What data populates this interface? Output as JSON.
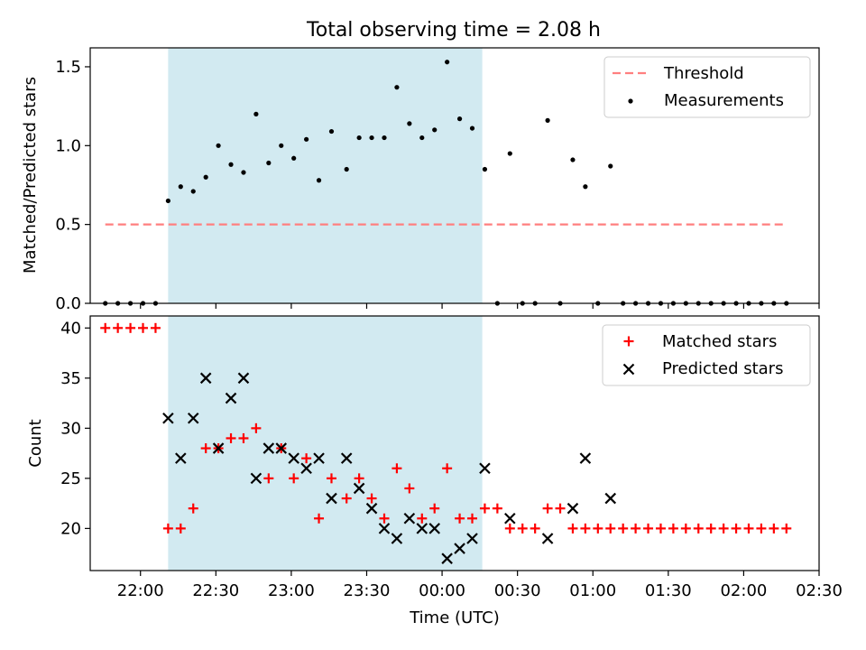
{
  "title": "Total observing time = 2.08 h",
  "chart_data": [
    {
      "type": "scatter",
      "panel": "top",
      "ylabel": "Matched/Predicted stars",
      "xlabel": "",
      "ylim": [
        0,
        1.62
      ],
      "yticks": [
        0.0,
        0.5,
        1.0,
        1.5
      ],
      "ytick_labels": [
        "0.0",
        "0.5",
        "1.0",
        "1.5"
      ],
      "x_time_range": [
        "21:40",
        "02:30"
      ],
      "xticks": [
        "22:00",
        "22:30",
        "23:00",
        "23:30",
        "00:00",
        "00:30",
        "01:00",
        "01:30",
        "02:00",
        "02:30"
      ],
      "xtick_labels_shown": false,
      "shaded_interval": [
        "22:11",
        "00:16"
      ],
      "shade_color": "#add8e6",
      "legend_position": "top-right",
      "threshold": {
        "name": "Threshold",
        "value": 0.5,
        "x_start": "21:46",
        "x_end": "02:16",
        "style": "dashed",
        "color": "#ff7f7f"
      },
      "series": [
        {
          "name": "Measurements",
          "marker": "dot",
          "color": "#000000",
          "points": [
            [
              "21:46",
              0.0
            ],
            [
              "21:51",
              0.0
            ],
            [
              "21:56",
              0.0
            ],
            [
              "22:01",
              0.0
            ],
            [
              "22:06",
              0.0
            ],
            [
              "22:11",
              0.65
            ],
            [
              "22:16",
              0.74
            ],
            [
              "22:21",
              0.71
            ],
            [
              "22:26",
              0.8
            ],
            [
              "22:31",
              1.0
            ],
            [
              "22:36",
              0.88
            ],
            [
              "22:41",
              0.83
            ],
            [
              "22:46",
              1.2
            ],
            [
              "22:51",
              0.89
            ],
            [
              "22:56",
              1.0
            ],
            [
              "23:01",
              0.92
            ],
            [
              "23:06",
              1.04
            ],
            [
              "23:11",
              0.78
            ],
            [
              "23:16",
              1.09
            ],
            [
              "23:22",
              0.85
            ],
            [
              "23:27",
              1.05
            ],
            [
              "23:32",
              1.05
            ],
            [
              "23:37",
              1.05
            ],
            [
              "23:42",
              1.37
            ],
            [
              "23:47",
              1.14
            ],
            [
              "23:52",
              1.05
            ],
            [
              "23:57",
              1.1
            ],
            [
              "00:02",
              1.53
            ],
            [
              "00:07",
              1.17
            ],
            [
              "00:12",
              1.11
            ],
            [
              "00:17",
              0.85
            ],
            [
              "00:22",
              0.0
            ],
            [
              "00:27",
              0.95
            ],
            [
              "00:32",
              0.0
            ],
            [
              "00:37",
              0.0
            ],
            [
              "00:42",
              1.16
            ],
            [
              "00:47",
              0.0
            ],
            [
              "00:52",
              0.91
            ],
            [
              "00:57",
              0.74
            ],
            [
              "01:02",
              0.0
            ],
            [
              "01:07",
              0.87
            ],
            [
              "01:12",
              0.0
            ],
            [
              "01:17",
              0.0
            ],
            [
              "01:22",
              0.0
            ],
            [
              "01:27",
              0.0
            ],
            [
              "01:32",
              0.0
            ],
            [
              "01:37",
              0.0
            ],
            [
              "01:42",
              0.0
            ],
            [
              "01:47",
              0.0
            ],
            [
              "01:52",
              0.0
            ],
            [
              "01:57",
              0.0
            ],
            [
              "02:02",
              0.0
            ],
            [
              "02:07",
              0.0
            ],
            [
              "02:12",
              0.0
            ],
            [
              "02:17",
              0.0
            ]
          ]
        }
      ]
    },
    {
      "type": "scatter",
      "panel": "bottom",
      "ylabel": "Count",
      "xlabel": "Time (UTC)",
      "ylim": [
        15.8,
        41.2
      ],
      "yticks": [
        20,
        25,
        30,
        35,
        40
      ],
      "ytick_labels": [
        "20",
        "25",
        "30",
        "35",
        "40"
      ],
      "x_time_range": [
        "21:40",
        "02:30"
      ],
      "xticks": [
        "22:00",
        "22:30",
        "23:00",
        "23:30",
        "00:00",
        "00:30",
        "01:00",
        "01:30",
        "02:00",
        "02:30"
      ],
      "xtick_labels": [
        "22:00",
        "22:30",
        "23:00",
        "23:30",
        "00:00",
        "00:30",
        "01:00",
        "01:30",
        "02:00",
        "02:30"
      ],
      "shaded_interval": [
        "22:11",
        "00:16"
      ],
      "shade_color": "#add8e6",
      "legend_position": "top-right",
      "series": [
        {
          "name": "Matched stars",
          "marker": "plus",
          "color": "#ff0000",
          "points": [
            [
              "21:46",
              40
            ],
            [
              "21:51",
              40
            ],
            [
              "21:56",
              40
            ],
            [
              "22:01",
              40
            ],
            [
              "22:06",
              40
            ],
            [
              "22:11",
              20
            ],
            [
              "22:16",
              20
            ],
            [
              "22:21",
              22
            ],
            [
              "22:26",
              28
            ],
            [
              "22:31",
              28
            ],
            [
              "22:36",
              29
            ],
            [
              "22:41",
              29
            ],
            [
              "22:46",
              30
            ],
            [
              "22:51",
              25
            ],
            [
              "22:56",
              28
            ],
            [
              "23:01",
              25
            ],
            [
              "23:06",
              27
            ],
            [
              "23:11",
              21
            ],
            [
              "23:16",
              25
            ],
            [
              "23:22",
              23
            ],
            [
              "23:27",
              25
            ],
            [
              "23:32",
              23
            ],
            [
              "23:37",
              21
            ],
            [
              "23:42",
              26
            ],
            [
              "23:47",
              24
            ],
            [
              "23:52",
              21
            ],
            [
              "23:57",
              22
            ],
            [
              "00:02",
              26
            ],
            [
              "00:07",
              21
            ],
            [
              "00:12",
              21
            ],
            [
              "00:17",
              22
            ],
            [
              "00:22",
              22
            ],
            [
              "00:27",
              20
            ],
            [
              "00:32",
              20
            ],
            [
              "00:37",
              20
            ],
            [
              "00:42",
              22
            ],
            [
              "00:47",
              22
            ],
            [
              "00:52",
              20
            ],
            [
              "00:57",
              20
            ],
            [
              "01:02",
              20
            ],
            [
              "01:07",
              20
            ],
            [
              "01:12",
              20
            ],
            [
              "01:17",
              20
            ],
            [
              "01:22",
              20
            ],
            [
              "01:27",
              20
            ],
            [
              "01:32",
              20
            ],
            [
              "01:37",
              20
            ],
            [
              "01:42",
              20
            ],
            [
              "01:47",
              20
            ],
            [
              "01:52",
              20
            ],
            [
              "01:57",
              20
            ],
            [
              "02:02",
              20
            ],
            [
              "02:07",
              20
            ],
            [
              "02:12",
              20
            ],
            [
              "02:17",
              20
            ]
          ]
        },
        {
          "name": "Predicted stars",
          "marker": "x",
          "color": "#000000",
          "points": [
            [
              "22:11",
              31
            ],
            [
              "22:16",
              27
            ],
            [
              "22:21",
              31
            ],
            [
              "22:26",
              35
            ],
            [
              "22:31",
              28
            ],
            [
              "22:36",
              33
            ],
            [
              "22:41",
              35
            ],
            [
              "22:46",
              25
            ],
            [
              "22:51",
              28
            ],
            [
              "22:56",
              28
            ],
            [
              "23:01",
              27
            ],
            [
              "23:06",
              26
            ],
            [
              "23:11",
              27
            ],
            [
              "23:16",
              23
            ],
            [
              "23:22",
              27
            ],
            [
              "23:27",
              24
            ],
            [
              "23:32",
              22
            ],
            [
              "23:37",
              20
            ],
            [
              "23:42",
              19
            ],
            [
              "23:47",
              21
            ],
            [
              "23:52",
              20
            ],
            [
              "23:57",
              20
            ],
            [
              "00:02",
              17
            ],
            [
              "00:07",
              18
            ],
            [
              "00:12",
              19
            ],
            [
              "00:17",
              26
            ],
            [
              "00:27",
              21
            ],
            [
              "00:42",
              19
            ],
            [
              "00:52",
              22
            ],
            [
              "00:57",
              27
            ],
            [
              "01:07",
              23
            ]
          ]
        }
      ]
    }
  ]
}
